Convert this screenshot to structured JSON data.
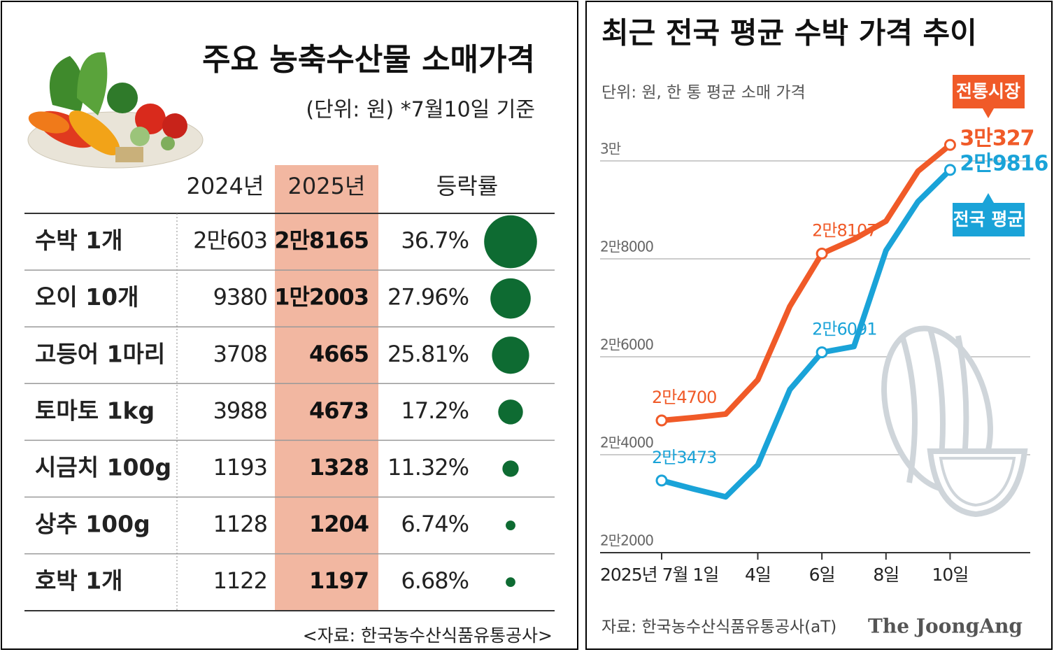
{
  "table": {
    "title": "주요 농축수산물 소매가격",
    "subtitle": "(단위: 원) *7월10일 기준",
    "columns": [
      "2024년",
      "2025년",
      "등락률"
    ],
    "rows": [
      [
        "수박 1개",
        "2만603",
        "2만8165"
      ],
      [
        "오이 10개",
        "9380",
        "1만2003"
      ],
      [
        "고등어 1마리",
        "3708",
        "4665"
      ],
      [
        "토마토 1kg",
        "3988",
        "4673"
      ],
      [
        "시금치 100g",
        "1193",
        "1328"
      ],
      [
        "상추 100g",
        "1128",
        "1204"
      ],
      [
        "호박 1개",
        "1122",
        "1197"
      ]
    ],
    "change": {
      "values": [
        36.7,
        27.96,
        25.81,
        17.2,
        11.32,
        6.74,
        6.68
      ],
      "value_labels": [
        "36.7%",
        "27.96%",
        "25.81%",
        "17.2%",
        "11.32%",
        "6.74%",
        "6.68%"
      ],
      "color": "#0e6b32"
    },
    "source": "<자료: 한국농수산식품유통공사>"
  },
  "chart_data": {
    "type": "line",
    "title": "최근 전국 평균 수박 가격 추이",
    "subtitle": "단위: 원, 한 통 평균 소매 가격",
    "x": [
      1,
      2,
      3,
      4,
      5,
      6,
      7,
      8,
      9,
      10
    ],
    "xlim": [
      1,
      12.5
    ],
    "xticks": [
      {
        "value": 1,
        "label": "2025년 7월 1일"
      },
      {
        "value": 4,
        "label": "4일"
      },
      {
        "value": 6,
        "label": "6일"
      },
      {
        "value": 8,
        "label": "8일"
      },
      {
        "value": 10,
        "label": "10일"
      }
    ],
    "ylim": [
      22000,
      31000
    ],
    "yticks": [
      {
        "value": 22000,
        "label": "2만2000"
      },
      {
        "value": 24000,
        "label": "2만4000"
      },
      {
        "value": 26000,
        "label": "2만6000"
      },
      {
        "value": 28000,
        "label": "2만8000"
      },
      {
        "value": 30000,
        "label": "3만"
      }
    ],
    "grid": true,
    "series": [
      {
        "name": "전통시장",
        "color": "#f05a28",
        "values": [
          24700,
          24760,
          24830,
          25530,
          27030,
          28107,
          28400,
          28770,
          29790,
          30327
        ],
        "value_labels": [
          "2만4700",
          null,
          null,
          null,
          null,
          "2만8107",
          null,
          null,
          null,
          "3만327"
        ]
      },
      {
        "name": "전국 평균",
        "color": "#1aa3d8",
        "values": [
          23473,
          23300,
          23140,
          23790,
          25330,
          26091,
          26210,
          28170,
          29170,
          29816
        ],
        "value_labels": [
          "2만3473",
          null,
          null,
          null,
          null,
          "2만6091",
          null,
          null,
          null,
          "2만9816"
        ]
      }
    ],
    "source": "자료: 한국농수산식품유통공사(aT)",
    "brand": "The JoongAng"
  }
}
